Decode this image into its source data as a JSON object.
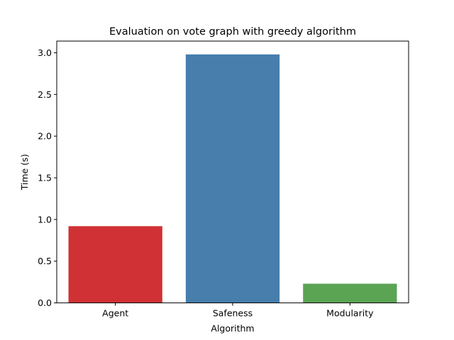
{
  "chart_data": {
    "type": "bar",
    "title": "Evaluation on vote graph with greedy algorithm",
    "xlabel": "Algorithm",
    "ylabel": "Time (s)",
    "categories": [
      "Agent",
      "Safeness",
      "Modularity"
    ],
    "values": [
      0.92,
      2.98,
      0.23
    ],
    "colors": [
      "#d03135",
      "#477eac",
      "#5ba454"
    ],
    "ylim": [
      0,
      3.14
    ],
    "yticks": [
      0.0,
      0.5,
      1.0,
      1.5,
      2.0,
      2.5,
      3.0
    ],
    "ytick_labels": [
      "0.0",
      "0.5",
      "1.0",
      "1.5",
      "2.0",
      "2.5",
      "3.0"
    ],
    "grid": false,
    "legend": "none"
  }
}
